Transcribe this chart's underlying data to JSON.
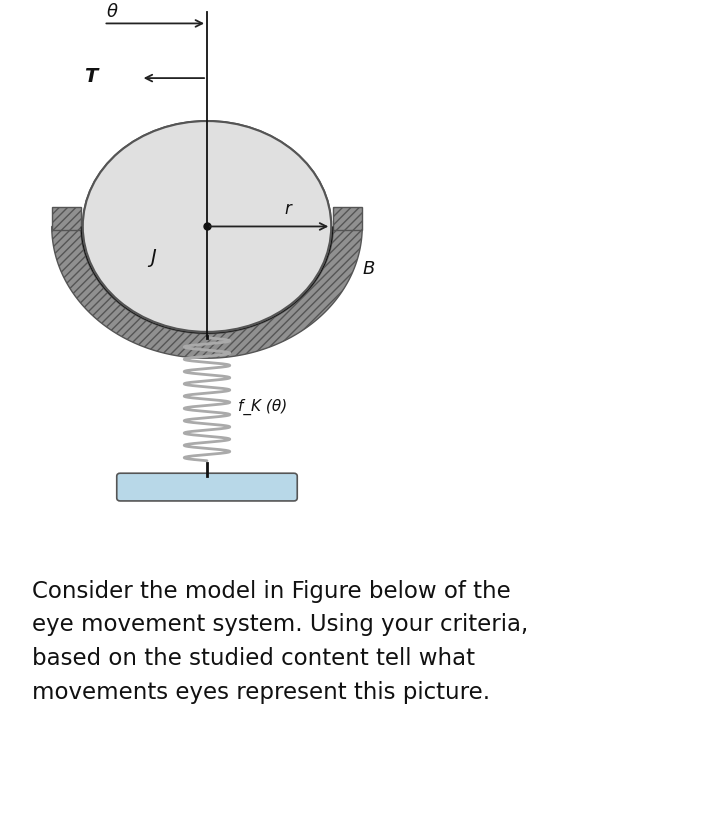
{
  "bg_color": "#c9c9c9",
  "white_bg": "#ffffff",
  "panel_bg": "#c9c9c9",
  "eyeball_color": "#e0e0e0",
  "eyeball_edge": "#555555",
  "socket_hatch_color": "#888888",
  "socket_black": "#111111",
  "spring_color": "#aaaaaa",
  "base_color": "#b8d8e8",
  "base_edge": "#555555",
  "arrow_color": "#222222",
  "label_color": "#111111",
  "line_color": "#111111",
  "theta_label": "θ",
  "T_label": "T",
  "r_label": "r",
  "J_label": "J",
  "B_label": "B",
  "fk_label": "f_K (θ)",
  "body_text": "Consider the model in Figure below of the\neye movement system. Using your criteria,\nbased on the studied content tell what\nmovements eyes represent this picture."
}
